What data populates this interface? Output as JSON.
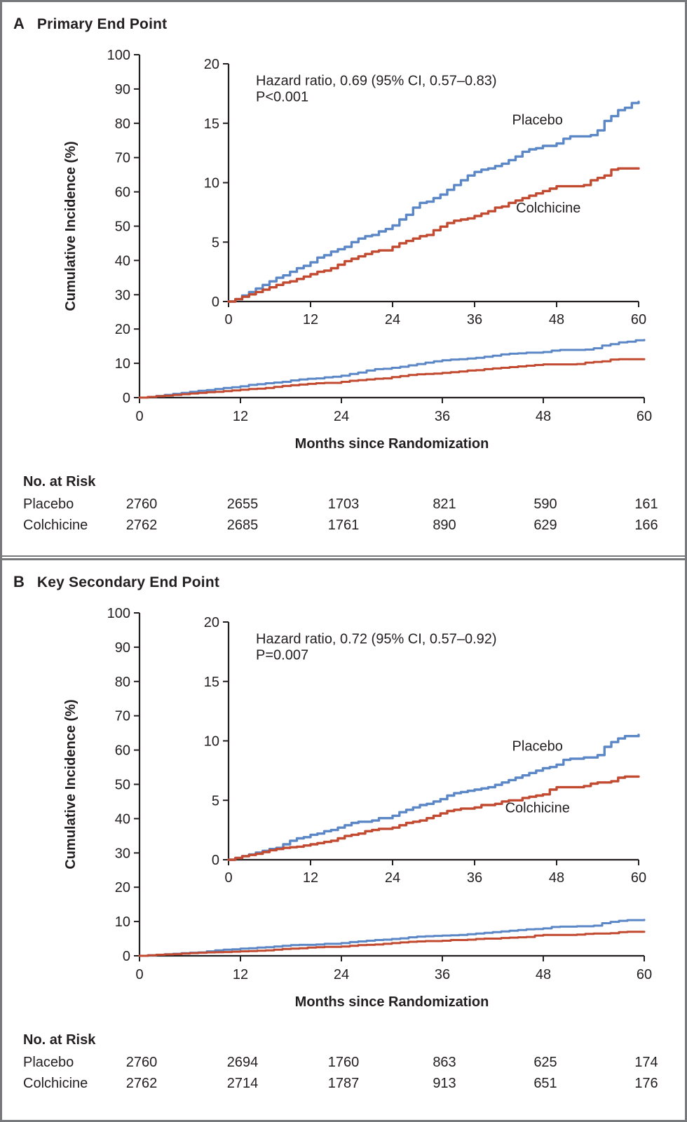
{
  "figure": {
    "background": "#ffffff",
    "border_color": "#77787b",
    "text_color": "#231f20"
  },
  "panels": [
    {
      "letter": "A",
      "title": "Primary End Point"
    },
    {
      "letter": "B",
      "title": "Key Secondary End Point"
    }
  ],
  "chart_data": [
    {
      "type": "line",
      "subtype": "cumulative-incidence-step-curves",
      "title": "Primary End Point",
      "xlabel": "Months since Randomization",
      "ylabel": "Cumulative Incidence (%)",
      "xlim": [
        0,
        60
      ],
      "x_ticks": [
        0,
        12,
        24,
        36,
        48,
        60
      ],
      "main_axis": {
        "ylim": [
          0,
          100
        ],
        "yticks": [
          0,
          10,
          20,
          30,
          40,
          50,
          60,
          70,
          80,
          90,
          100
        ]
      },
      "inset_axis": {
        "ylim": [
          0,
          20
        ],
        "yticks": [
          0,
          5,
          10,
          15,
          20
        ]
      },
      "annotation": {
        "lines": [
          "Hazard ratio, 0.69 (95% CI, 0.57–0.83)",
          "P<0.001"
        ],
        "pos": {
          "x": 4.0,
          "y1": 18.2,
          "y2": 16.85
        }
      },
      "x": [
        0,
        1,
        2,
        3,
        4,
        5,
        6,
        7,
        8,
        9,
        10,
        11,
        12,
        13,
        14,
        15,
        16,
        17,
        18,
        19,
        20,
        21,
        22,
        23,
        24,
        25,
        26,
        27,
        28,
        29,
        30,
        31,
        32,
        33,
        34,
        35,
        36,
        37,
        38,
        39,
        40,
        41,
        42,
        43,
        44,
        45,
        46,
        47,
        48,
        49,
        50,
        51,
        52,
        53,
        54,
        55,
        56,
        57,
        58,
        59,
        60
      ],
      "series": [
        {
          "name": "Placebo",
          "color": "#5b87c6",
          "label_pos": {
            "x": 45.2,
            "y": 15.3
          },
          "y": [
            0,
            0.2,
            0.5,
            0.8,
            1.1,
            1.4,
            1.7,
            2.0,
            2.2,
            2.5,
            2.8,
            3.0,
            3.3,
            3.7,
            3.9,
            4.2,
            4.4,
            4.6,
            5.0,
            5.3,
            5.5,
            5.6,
            5.9,
            6.1,
            6.4,
            6.9,
            7.3,
            7.9,
            8.3,
            8.4,
            8.7,
            9.0,
            9.4,
            9.8,
            10.2,
            10.6,
            10.9,
            11.1,
            11.2,
            11.4,
            11.6,
            11.9,
            12.2,
            12.6,
            12.8,
            12.9,
            13.1,
            13.1,
            13.3,
            13.7,
            13.9,
            13.9,
            13.9,
            14.0,
            14.4,
            15.2,
            15.6,
            16.1,
            16.3,
            16.7,
            16.8
          ]
        },
        {
          "name": "Colchicine",
          "color": "#c14a30",
          "label_pos": {
            "x": 46.8,
            "y": 7.9
          },
          "y": [
            0,
            0.2,
            0.4,
            0.6,
            0.8,
            1.0,
            1.2,
            1.4,
            1.6,
            1.7,
            1.9,
            2.1,
            2.3,
            2.5,
            2.6,
            2.8,
            3.1,
            3.4,
            3.6,
            3.8,
            4.0,
            4.2,
            4.3,
            4.3,
            4.6,
            4.9,
            5.1,
            5.3,
            5.5,
            5.6,
            6.0,
            6.3,
            6.6,
            6.8,
            6.9,
            7.0,
            7.2,
            7.4,
            7.6,
            7.9,
            8.0,
            8.3,
            8.5,
            8.7,
            8.9,
            9.1,
            9.3,
            9.5,
            9.7,
            9.7,
            9.7,
            9.7,
            9.8,
            10.2,
            10.4,
            10.6,
            11.1,
            11.2,
            11.2,
            11.2,
            11.2
          ]
        }
      ],
      "no_at_risk": {
        "header": "No. at Risk",
        "times": [
          0,
          12,
          24,
          36,
          48,
          60
        ],
        "rows": [
          {
            "name": "Placebo",
            "values": [
              2760,
              2655,
              1703,
              821,
              590,
              161
            ]
          },
          {
            "name": "Colchicine",
            "values": [
              2762,
              2685,
              1761,
              890,
              629,
              166
            ]
          }
        ]
      }
    },
    {
      "type": "line",
      "subtype": "cumulative-incidence-step-curves",
      "title": "Key Secondary End Point",
      "xlabel": "Months since Randomization",
      "ylabel": "Cumulative Incidence (%)",
      "xlim": [
        0,
        60
      ],
      "x_ticks": [
        0,
        12,
        24,
        36,
        48,
        60
      ],
      "main_axis": {
        "ylim": [
          0,
          100
        ],
        "yticks": [
          0,
          10,
          20,
          30,
          40,
          50,
          60,
          70,
          80,
          90,
          100
        ]
      },
      "inset_axis": {
        "ylim": [
          0,
          20
        ],
        "yticks": [
          0,
          5,
          10,
          15,
          20
        ]
      },
      "annotation": {
        "lines": [
          "Hazard ratio, 0.72 (95% CI, 0.57–0.92)",
          "P=0.007"
        ],
        "pos": {
          "x": 4.0,
          "y1": 18.2,
          "y2": 16.85
        }
      },
      "x": [
        0,
        1,
        2,
        3,
        4,
        5,
        6,
        7,
        8,
        9,
        10,
        11,
        12,
        13,
        14,
        15,
        16,
        17,
        18,
        19,
        20,
        21,
        22,
        23,
        24,
        25,
        26,
        27,
        28,
        29,
        30,
        31,
        32,
        33,
        34,
        35,
        36,
        37,
        38,
        39,
        40,
        41,
        42,
        43,
        44,
        45,
        46,
        47,
        48,
        49,
        50,
        51,
        52,
        53,
        54,
        55,
        56,
        57,
        58,
        59,
        60
      ],
      "series": [
        {
          "name": "Placebo",
          "color": "#5b87c6",
          "label_pos": {
            "x": 45.2,
            "y": 9.6
          },
          "y": [
            0,
            0.15,
            0.3,
            0.45,
            0.6,
            0.75,
            0.9,
            1.0,
            1.3,
            1.6,
            1.8,
            1.9,
            2.1,
            2.2,
            2.4,
            2.5,
            2.7,
            2.9,
            3.1,
            3.2,
            3.2,
            3.3,
            3.5,
            3.5,
            3.7,
            4.0,
            4.2,
            4.4,
            4.6,
            4.7,
            4.9,
            5.1,
            5.4,
            5.6,
            5.7,
            5.8,
            5.9,
            6.0,
            6.1,
            6.3,
            6.5,
            6.7,
            6.9,
            7.1,
            7.3,
            7.5,
            7.7,
            7.8,
            8.0,
            8.4,
            8.5,
            8.5,
            8.6,
            8.6,
            8.8,
            9.5,
            9.9,
            10.2,
            10.4,
            10.4,
            10.5
          ]
        },
        {
          "name": "Colchicine",
          "color": "#c14a30",
          "label_pos": {
            "x": 45.2,
            "y": 4.4
          },
          "y": [
            0,
            0.15,
            0.3,
            0.4,
            0.5,
            0.65,
            0.8,
            0.9,
            1.0,
            1.05,
            1.1,
            1.2,
            1.3,
            1.4,
            1.5,
            1.6,
            1.8,
            2.0,
            2.1,
            2.2,
            2.4,
            2.5,
            2.6,
            2.6,
            2.7,
            2.9,
            3.1,
            3.2,
            3.3,
            3.5,
            3.7,
            3.9,
            4.1,
            4.2,
            4.3,
            4.3,
            4.4,
            4.6,
            4.6,
            4.7,
            4.9,
            5.0,
            5.0,
            5.2,
            5.3,
            5.4,
            5.5,
            5.9,
            6.1,
            6.1,
            6.1,
            6.1,
            6.2,
            6.4,
            6.5,
            6.5,
            6.6,
            6.9,
            7.0,
            7.0,
            7.0
          ]
        }
      ],
      "no_at_risk": {
        "header": "No. at Risk",
        "times": [
          0,
          12,
          24,
          36,
          48,
          60
        ],
        "rows": [
          {
            "name": "Placebo",
            "values": [
              2760,
              2694,
              1760,
              863,
              625,
              174
            ]
          },
          {
            "name": "Colchicine",
            "values": [
              2762,
              2714,
              1787,
              913,
              651,
              176
            ]
          }
        ]
      }
    }
  ]
}
